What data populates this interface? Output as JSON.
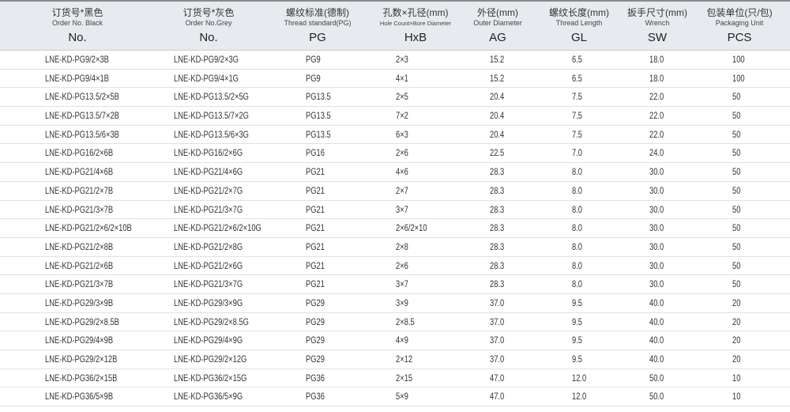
{
  "headers": [
    {
      "zh": "订货号*黑色",
      "en": "Order No. Black",
      "sym": "No."
    },
    {
      "zh": "订货号*灰色",
      "en": "Order No.Grey",
      "sym": "No."
    },
    {
      "zh": "螺纹标准(德制)",
      "en": "Thread standard(PG)",
      "sym": "PG"
    },
    {
      "zh": "孔数×孔径(mm)",
      "en": "Hole Count×Bore Diameter",
      "sym": "HxB"
    },
    {
      "zh": "外径(mm)",
      "en": "Outer Diameter",
      "sym": "AG"
    },
    {
      "zh": "螺纹长度(mm)",
      "en": "Thread Length",
      "sym": "GL"
    },
    {
      "zh": "扳手尺寸(mm)",
      "en": "Wrench",
      "sym": "SW"
    },
    {
      "zh": "包装单位(只/包)",
      "en": "Packaging Unit",
      "sym": "PCS"
    }
  ],
  "rows": [
    [
      "LNE-KD-PG9/2×3B",
      "LNE-KD-PG9/2×3G",
      "PG9",
      "2×3",
      "15.2",
      "6.5",
      "18.0",
      "100"
    ],
    [
      "LNE-KD-PG9/4×1B",
      "LNE-KD-PG9/4×1G",
      "PG9",
      "4×1",
      "15.2",
      "6.5",
      "18.0",
      "100"
    ],
    [
      "LNE-KD-PG13.5/2×5B",
      "LNE-KD-PG13.5/2×5G",
      "PG13.5",
      "2×5",
      "20.4",
      "7.5",
      "22.0",
      "50"
    ],
    [
      "LNE-KD-PG13.5/7×2B",
      "LNE-KD-PG13.5/7×2G",
      "PG13.5",
      "7×2",
      "20.4",
      "7.5",
      "22.0",
      "50"
    ],
    [
      "LNE-KD-PG13.5/6×3B",
      "LNE-KD-PG13.5/6×3G",
      "PG13.5",
      "6×3",
      "20.4",
      "7.5",
      "22.0",
      "50"
    ],
    [
      "LNE-KD-PG16/2×6B",
      "LNE-KD-PG16/2×6G",
      "PG16",
      "2×6",
      "22.5",
      "7.0",
      "24.0",
      "50"
    ],
    [
      "LNE-KD-PG21/4×6B",
      "LNE-KD-PG21/4×6G",
      "PG21",
      "4×6",
      "28.3",
      "8.0",
      "30.0",
      "50"
    ],
    [
      "LNE-KD-PG21/2×7B",
      "LNE-KD-PG21/2×7G",
      "PG21",
      "2×7",
      "28.3",
      "8.0",
      "30.0",
      "50"
    ],
    [
      "LNE-KD-PG21/3×7B",
      "LNE-KD-PG21/3×7G",
      "PG21",
      "3×7",
      "28.3",
      "8.0",
      "30.0",
      "50"
    ],
    [
      "LNE-KD-PG21/2×6/2×10B",
      "LNE-KD-PG21/2×6/2×10G",
      "PG21",
      "2×6/2×10",
      "28.3",
      "8.0",
      "30.0",
      "50"
    ],
    [
      "LNE-KD-PG21/2×8B",
      "LNE-KD-PG21/2×8G",
      "PG21",
      "2×8",
      "28.3",
      "8.0",
      "30.0",
      "50"
    ],
    [
      "LNE-KD-PG21/2×6B",
      "LNE-KD-PG21/2×6G",
      "PG21",
      "2×6",
      "28.3",
      "8.0",
      "30.0",
      "50"
    ],
    [
      "LNE-KD-PG21/3×7B",
      "LNE-KD-PG21/3×7G",
      "PG21",
      "3×7",
      "28.3",
      "8.0",
      "30.0",
      "50"
    ],
    [
      "LNE-KD-PG29/3×9B",
      "LNE-KD-PG29/3×9G",
      "PG29",
      "3×9",
      "37.0",
      "9.5",
      "40.0",
      "20"
    ],
    [
      "LNE-KD-PG29/2×8.5B",
      "LNE-KD-PG29/2×8.5G",
      "PG29",
      "2×8.5",
      "37.0",
      "9.5",
      "40.0",
      "20"
    ],
    [
      "LNE-KD-PG29/4×9B",
      "LNE-KD-PG29/4×9G",
      "PG29",
      "4×9",
      "37.0",
      "9.5",
      "40.0",
      "20"
    ],
    [
      "LNE-KD-PG29/2×12B",
      "LNE-KD-PG29/2×12G",
      "PG29",
      "2×12",
      "37.0",
      "9.5",
      "40.0",
      "20"
    ],
    [
      "LNE-KD-PG36/2×15B",
      "LNE-KD-PG36/2×15G",
      "PG36",
      "2×15",
      "47.0",
      "12.0",
      "50.0",
      "10"
    ],
    [
      "LNE-KD-PG36/5×9B",
      "LNE-KD-PG36/5×9G",
      "PG36",
      "5×9",
      "47.0",
      "12.0",
      "50.0",
      "10"
    ]
  ]
}
